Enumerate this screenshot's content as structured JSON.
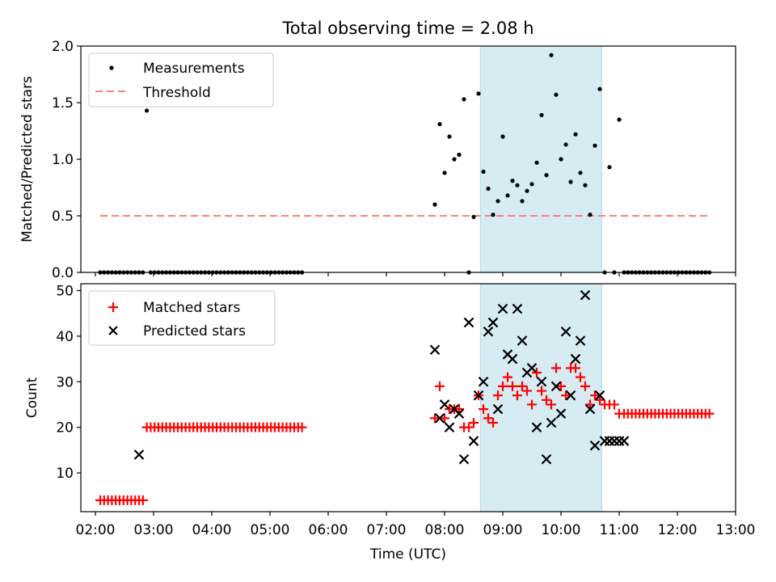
{
  "title": "Total observing time = 2.08 h",
  "xlabel": "Time (UTC)",
  "colors": {
    "measurements": "#000000",
    "threshold": "#ff7f7f",
    "matched": "#ff0000",
    "predicted": "#000000",
    "shade": "#add8e6"
  },
  "chart_data": [
    {
      "type": "scatter",
      "panel": "top",
      "title": "Total observing time = 2.08 h",
      "xlabel": "",
      "ylabel": "Matched/Predicted stars",
      "xlim": [
        "01:45",
        "13:00"
      ],
      "ylim": [
        0,
        2.0
      ],
      "y_ticks": [
        "0.0",
        "0.5",
        "1.0",
        "1.5",
        "2.0"
      ],
      "legend_position": "top-left",
      "grid": false,
      "shaded_interval": [
        "08:37",
        "10:42"
      ],
      "series": [
        {
          "name": "Measurements",
          "marker": "dot",
          "x": [
            "02:05",
            "02:09",
            "02:13",
            "02:17",
            "02:21",
            "02:25",
            "02:29",
            "02:33",
            "02:37",
            "02:41",
            "02:45",
            "02:49",
            "02:53",
            "02:57",
            "03:01",
            "03:05",
            "03:09",
            "03:13",
            "03:17",
            "03:21",
            "03:25",
            "03:29",
            "03:33",
            "03:37",
            "03:41",
            "03:45",
            "03:49",
            "03:53",
            "03:57",
            "04:01",
            "04:05",
            "04:09",
            "04:13",
            "04:17",
            "04:21",
            "04:25",
            "04:29",
            "04:33",
            "04:37",
            "04:41",
            "04:45",
            "04:49",
            "04:53",
            "04:57",
            "05:01",
            "05:05",
            "05:09",
            "05:13",
            "05:17",
            "05:21",
            "05:25",
            "05:29",
            "05:33",
            "07:50",
            "07:55",
            "08:00",
            "08:05",
            "08:10",
            "08:15",
            "08:20",
            "08:25",
            "08:30",
            "08:35",
            "08:40",
            "08:45",
            "08:50",
            "08:55",
            "09:00",
            "09:05",
            "09:10",
            "09:15",
            "09:20",
            "09:25",
            "09:30",
            "09:35",
            "09:40",
            "09:45",
            "09:50",
            "09:55",
            "10:00",
            "10:05",
            "10:10",
            "10:15",
            "10:20",
            "10:25",
            "10:30",
            "10:35",
            "10:40",
            "10:45",
            "10:50",
            "10:55",
            "11:00",
            "11:05",
            "11:09",
            "11:13",
            "11:17",
            "11:21",
            "11:25",
            "11:29",
            "11:33",
            "11:37",
            "11:41",
            "11:45",
            "11:49",
            "11:53",
            "11:57",
            "12:01",
            "12:05",
            "12:09",
            "12:13",
            "12:17",
            "12:21",
            "12:25",
            "12:29",
            "12:33"
          ],
          "y": [
            0,
            0,
            0,
            0,
            0,
            0,
            0,
            0,
            0,
            0,
            0,
            0,
            1.43,
            0,
            0,
            0,
            0,
            0,
            0,
            0,
            0,
            0,
            0,
            0,
            0,
            0,
            0,
            0,
            0,
            0,
            0,
            0,
            0,
            0,
            0,
            0,
            0,
            0,
            0,
            0,
            0,
            0,
            0,
            0,
            0,
            0,
            0,
            0,
            0,
            0,
            0,
            0,
            0,
            0.6,
            1.31,
            0.88,
            1.2,
            1.0,
            1.04,
            1.53,
            0,
            0.49,
            1.58,
            0.89,
            0.74,
            0.51,
            0.63,
            1.2,
            0.68,
            0.81,
            0.77,
            0.63,
            0.72,
            0.78,
            0.97,
            1.39,
            0.86,
            1.92,
            1.57,
            1.0,
            1.13,
            0.8,
            1.22,
            0.88,
            0.77,
            0.51,
            1.12,
            1.62,
            0,
            0.93,
            0,
            1.35,
            0,
            0,
            0,
            0,
            0,
            0,
            0,
            0,
            0,
            0,
            0,
            0,
            0,
            0,
            0,
            0,
            0,
            0,
            0,
            0,
            0,
            0,
            0
          ]
        },
        {
          "name": "Threshold",
          "marker": "dashed-line",
          "x": [
            "02:05",
            "12:33"
          ],
          "y": [
            0.5,
            0.5
          ]
        }
      ]
    },
    {
      "type": "scatter",
      "panel": "bottom",
      "xlabel": "Time (UTC)",
      "ylabel": "Count",
      "xlim": [
        "01:45",
        "13:00"
      ],
      "ylim": [
        1.5,
        51.5
      ],
      "x_ticks": [
        "02:00",
        "03:00",
        "04:00",
        "05:00",
        "06:00",
        "07:00",
        "08:00",
        "09:00",
        "10:00",
        "11:00",
        "12:00",
        "13:00"
      ],
      "y_ticks": [
        "10",
        "20",
        "30",
        "40",
        "50"
      ],
      "legend_position": "top-left",
      "grid": false,
      "shaded_interval": [
        "08:37",
        "10:42"
      ],
      "series": [
        {
          "name": "Matched stars",
          "marker": "plus",
          "x": [
            "02:05",
            "02:09",
            "02:13",
            "02:17",
            "02:21",
            "02:25",
            "02:29",
            "02:33",
            "02:37",
            "02:41",
            "02:45",
            "02:49",
            "02:53",
            "02:57",
            "03:01",
            "03:05",
            "03:09",
            "03:13",
            "03:17",
            "03:21",
            "03:25",
            "03:29",
            "03:33",
            "03:37",
            "03:41",
            "03:45",
            "03:49",
            "03:53",
            "03:57",
            "04:01",
            "04:05",
            "04:09",
            "04:13",
            "04:17",
            "04:21",
            "04:25",
            "04:29",
            "04:33",
            "04:37",
            "04:41",
            "04:45",
            "04:49",
            "04:53",
            "04:57",
            "05:01",
            "05:05",
            "05:09",
            "05:13",
            "05:17",
            "05:21",
            "05:25",
            "05:29",
            "05:33",
            "07:50",
            "07:55",
            "08:00",
            "08:05",
            "08:10",
            "08:15",
            "08:20",
            "08:25",
            "08:30",
            "08:35",
            "08:40",
            "08:45",
            "08:50",
            "08:55",
            "09:00",
            "09:05",
            "09:10",
            "09:15",
            "09:20",
            "09:25",
            "09:30",
            "09:35",
            "09:40",
            "09:45",
            "09:50",
            "09:55",
            "10:00",
            "10:05",
            "10:10",
            "10:15",
            "10:20",
            "10:25",
            "10:30",
            "10:35",
            "10:40",
            "10:45",
            "10:50",
            "10:55",
            "11:00",
            "11:05",
            "11:09",
            "11:13",
            "11:17",
            "11:21",
            "11:25",
            "11:29",
            "11:33",
            "11:37",
            "11:41",
            "11:45",
            "11:49",
            "11:53",
            "11:57",
            "12:01",
            "12:05",
            "12:09",
            "12:13",
            "12:17",
            "12:21",
            "12:25",
            "12:29",
            "12:33"
          ],
          "y": [
            4,
            4,
            4,
            4,
            4,
            4,
            4,
            4,
            4,
            4,
            4,
            4,
            20,
            20,
            20,
            20,
            20,
            20,
            20,
            20,
            20,
            20,
            20,
            20,
            20,
            20,
            20,
            20,
            20,
            20,
            20,
            20,
            20,
            20,
            20,
            20,
            20,
            20,
            20,
            20,
            20,
            20,
            20,
            20,
            20,
            20,
            20,
            20,
            20,
            20,
            20,
            20,
            20,
            22,
            29,
            22,
            24,
            24,
            24,
            20,
            20,
            21,
            27,
            24,
            22,
            21,
            27,
            29,
            31,
            29,
            27,
            29,
            28,
            25,
            32,
            28,
            26,
            25,
            33,
            29,
            27,
            33,
            33,
            31,
            29,
            25,
            27,
            26,
            25,
            25,
            25,
            23,
            23,
            23,
            23,
            23,
            23,
            23,
            23,
            23,
            23,
            23,
            23,
            23,
            23,
            23,
            23,
            23,
            23,
            23,
            23,
            23,
            23,
            23,
            23
          ]
        },
        {
          "name": "Predicted stars",
          "marker": "x",
          "x": [
            "02:45",
            "07:50",
            "07:55",
            "08:00",
            "08:05",
            "08:10",
            "08:15",
            "08:20",
            "08:25",
            "08:30",
            "08:35",
            "08:40",
            "08:45",
            "08:50",
            "08:55",
            "09:00",
            "09:05",
            "09:10",
            "09:15",
            "09:20",
            "09:25",
            "09:30",
            "09:35",
            "09:40",
            "09:45",
            "09:50",
            "09:55",
            "10:00",
            "10:05",
            "10:10",
            "10:15",
            "10:20",
            "10:25",
            "10:30",
            "10:35",
            "10:40",
            "10:45",
            "10:50",
            "10:55",
            "11:00",
            "11:05"
          ],
          "y": [
            14,
            37,
            22,
            25,
            20,
            24,
            23,
            13,
            43,
            17,
            27,
            30,
            41,
            43,
            24,
            46,
            36,
            35,
            46,
            39,
            32,
            33,
            20,
            30,
            13,
            21,
            29,
            23,
            41,
            27,
            35,
            39,
            49,
            24,
            16,
            27,
            17,
            17,
            17,
            17,
            17
          ]
        }
      ]
    }
  ]
}
